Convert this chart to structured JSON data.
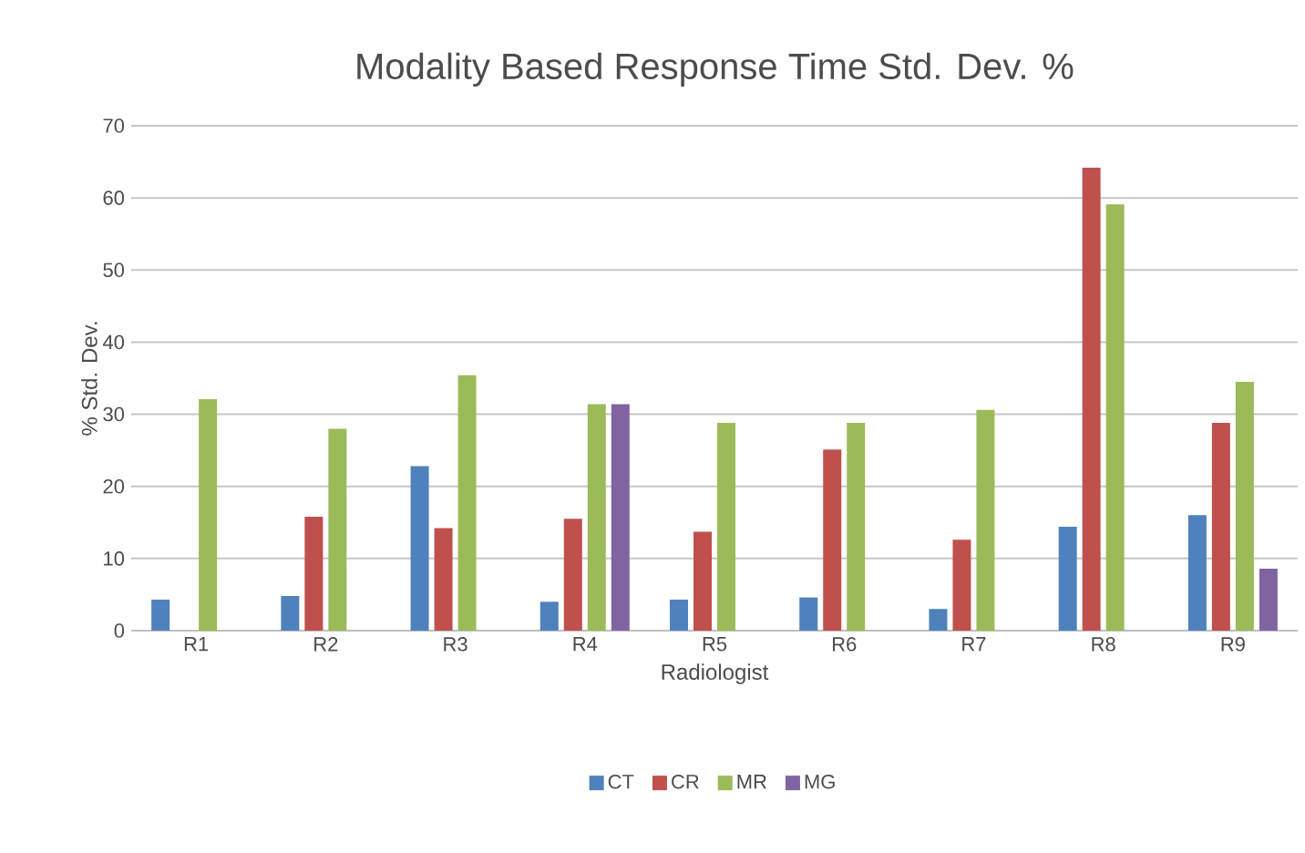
{
  "chart_data": {
    "type": "bar",
    "title": "Modality Based Response Time Std. Dev. %",
    "xlabel": "Radiologist",
    "ylabel": "% Std. Dev.",
    "categories": [
      "R1",
      "R2",
      "R3",
      "R4",
      "R5",
      "R6",
      "R7",
      "R8",
      "R9"
    ],
    "series": [
      {
        "name": "CT",
        "color": "#4f81bd",
        "values": [
          4.3,
          4.8,
          22.8,
          4.0,
          4.3,
          4.6,
          3.0,
          14.4,
          16.0
        ]
      },
      {
        "name": "CR",
        "color": "#c0504d",
        "values": [
          null,
          15.8,
          14.2,
          15.5,
          13.7,
          25.1,
          12.6,
          64.2,
          28.8
        ]
      },
      {
        "name": "MR",
        "color": "#9bbb59",
        "values": [
          32.1,
          28.0,
          35.4,
          31.4,
          28.8,
          28.8,
          30.6,
          59.1,
          34.5
        ]
      },
      {
        "name": "MG",
        "color": "#8064a2",
        "values": [
          null,
          null,
          null,
          31.4,
          null,
          null,
          null,
          null,
          8.6
        ]
      }
    ],
    "ylim": [
      0,
      70
    ],
    "yticks": [
      0,
      10,
      20,
      30,
      40,
      50,
      60,
      70
    ],
    "grid": "y",
    "legend": "bottom"
  }
}
